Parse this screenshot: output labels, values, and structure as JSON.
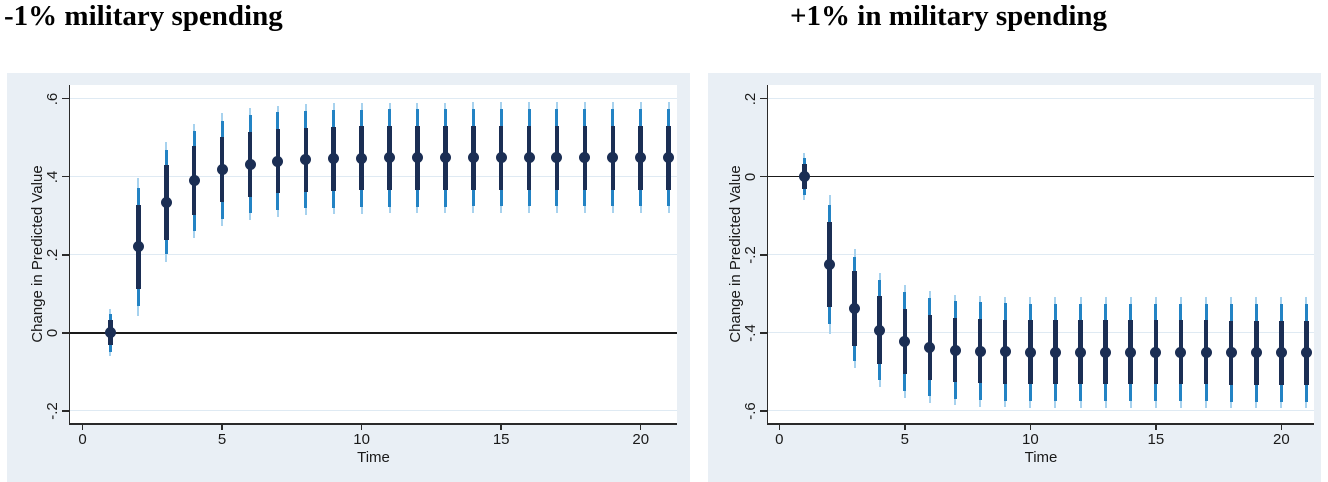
{
  "colors": {
    "panel_bg": "#e9eff5",
    "plot_bg": "#ffffff",
    "grid": "#dfeaf3",
    "axis": "#2a2a2a",
    "zero_line": "#1a1a1a",
    "ci_outer": "#a7d2ee",
    "ci_mid": "#2383c4",
    "ci_inner": "#1b2e54",
    "marker": "#1b2e54",
    "text": "#1a1a1a",
    "title_text": "#000000"
  },
  "chart_data": [
    {
      "type": "errorbar",
      "title": "-1% military spending",
      "xlabel": "Time",
      "ylabel": "Change in Predicted Value",
      "grid": true,
      "legend": "none",
      "xlim": [
        -0.45,
        21.3
      ],
      "ylim": [
        -0.231,
        0.635
      ],
      "x_ticks": [
        0,
        5,
        10,
        15,
        20
      ],
      "x_tick_labels": [
        "0",
        "5",
        "10",
        "15",
        "20"
      ],
      "y_ticks": [
        0.6,
        0.4,
        0.2,
        0,
        -0.2
      ],
      "y_tick_labels": [
        ".6",
        ".4",
        ".2",
        "0",
        "-.2"
      ],
      "zero_line": 0,
      "x": [
        1,
        2,
        3,
        4,
        5,
        6,
        7,
        8,
        9,
        10,
        11,
        12,
        13,
        14,
        15,
        16,
        17,
        18,
        19,
        20,
        21
      ],
      "estimates": [
        0,
        0.22,
        0.335,
        0.39,
        0.418,
        0.432,
        0.44,
        0.444,
        0.446,
        0.447,
        0.448,
        0.448,
        0.448,
        0.449,
        0.449,
        0.449,
        0.449,
        0.449,
        0.449,
        0.449,
        0.449
      ],
      "ci_inner_half": [
        0.032,
        0.108,
        0.096,
        0.088,
        0.084,
        0.083,
        0.082,
        0.082,
        0.082,
        0.082,
        0.082,
        0.082,
        0.082,
        0.082,
        0.082,
        0.082,
        0.082,
        0.082,
        0.082,
        0.082,
        0.082
      ],
      "ci_mid_half": [
        0.048,
        0.152,
        0.133,
        0.128,
        0.126,
        0.126,
        0.125,
        0.125,
        0.125,
        0.125,
        0.125,
        0.125,
        0.125,
        0.125,
        0.125,
        0.125,
        0.125,
        0.125,
        0.125,
        0.125,
        0.125
      ],
      "ci_outer_half": [
        0.06,
        0.178,
        0.153,
        0.146,
        0.144,
        0.143,
        0.142,
        0.142,
        0.142,
        0.142,
        0.142,
        0.142,
        0.142,
        0.142,
        0.142,
        0.142,
        0.142,
        0.142,
        0.142,
        0.142,
        0.142
      ]
    },
    {
      "type": "errorbar",
      "title": "+1% in military spending",
      "xlabel": "Time",
      "ylabel": "Change in Predicted Value",
      "grid": true,
      "legend": "none",
      "xlim": [
        -0.45,
        21.3
      ],
      "ylim": [
        -0.631,
        0.235
      ],
      "x_ticks": [
        0,
        5,
        10,
        15,
        20
      ],
      "x_tick_labels": [
        "0",
        "5",
        "10",
        "15",
        "20"
      ],
      "y_ticks": [
        0.2,
        0,
        -0.2,
        -0.4,
        -0.6
      ],
      "y_tick_labels": [
        ".2",
        "0",
        "-.2",
        "-.4",
        "-.6"
      ],
      "zero_line": 0,
      "x": [
        1,
        2,
        3,
        4,
        5,
        6,
        7,
        8,
        9,
        10,
        11,
        12,
        13,
        14,
        15,
        16,
        17,
        18,
        19,
        20,
        21
      ],
      "estimates": [
        0,
        -0.225,
        -0.338,
        -0.393,
        -0.422,
        -0.437,
        -0.444,
        -0.447,
        -0.449,
        -0.45,
        -0.45,
        -0.45,
        -0.45,
        -0.45,
        -0.45,
        -0.45,
        -0.45,
        -0.451,
        -0.451,
        -0.451,
        -0.451
      ],
      "ci_inner_half": [
        0.032,
        0.108,
        0.096,
        0.088,
        0.084,
        0.083,
        0.082,
        0.082,
        0.082,
        0.082,
        0.082,
        0.082,
        0.082,
        0.082,
        0.082,
        0.082,
        0.082,
        0.082,
        0.082,
        0.082,
        0.082
      ],
      "ci_mid_half": [
        0.048,
        0.152,
        0.133,
        0.128,
        0.126,
        0.126,
        0.125,
        0.125,
        0.125,
        0.125,
        0.125,
        0.125,
        0.125,
        0.125,
        0.125,
        0.125,
        0.125,
        0.125,
        0.125,
        0.125,
        0.125
      ],
      "ci_outer_half": [
        0.06,
        0.178,
        0.153,
        0.146,
        0.144,
        0.143,
        0.142,
        0.142,
        0.142,
        0.142,
        0.142,
        0.142,
        0.142,
        0.142,
        0.142,
        0.142,
        0.142,
        0.142,
        0.142,
        0.142,
        0.142
      ]
    }
  ]
}
